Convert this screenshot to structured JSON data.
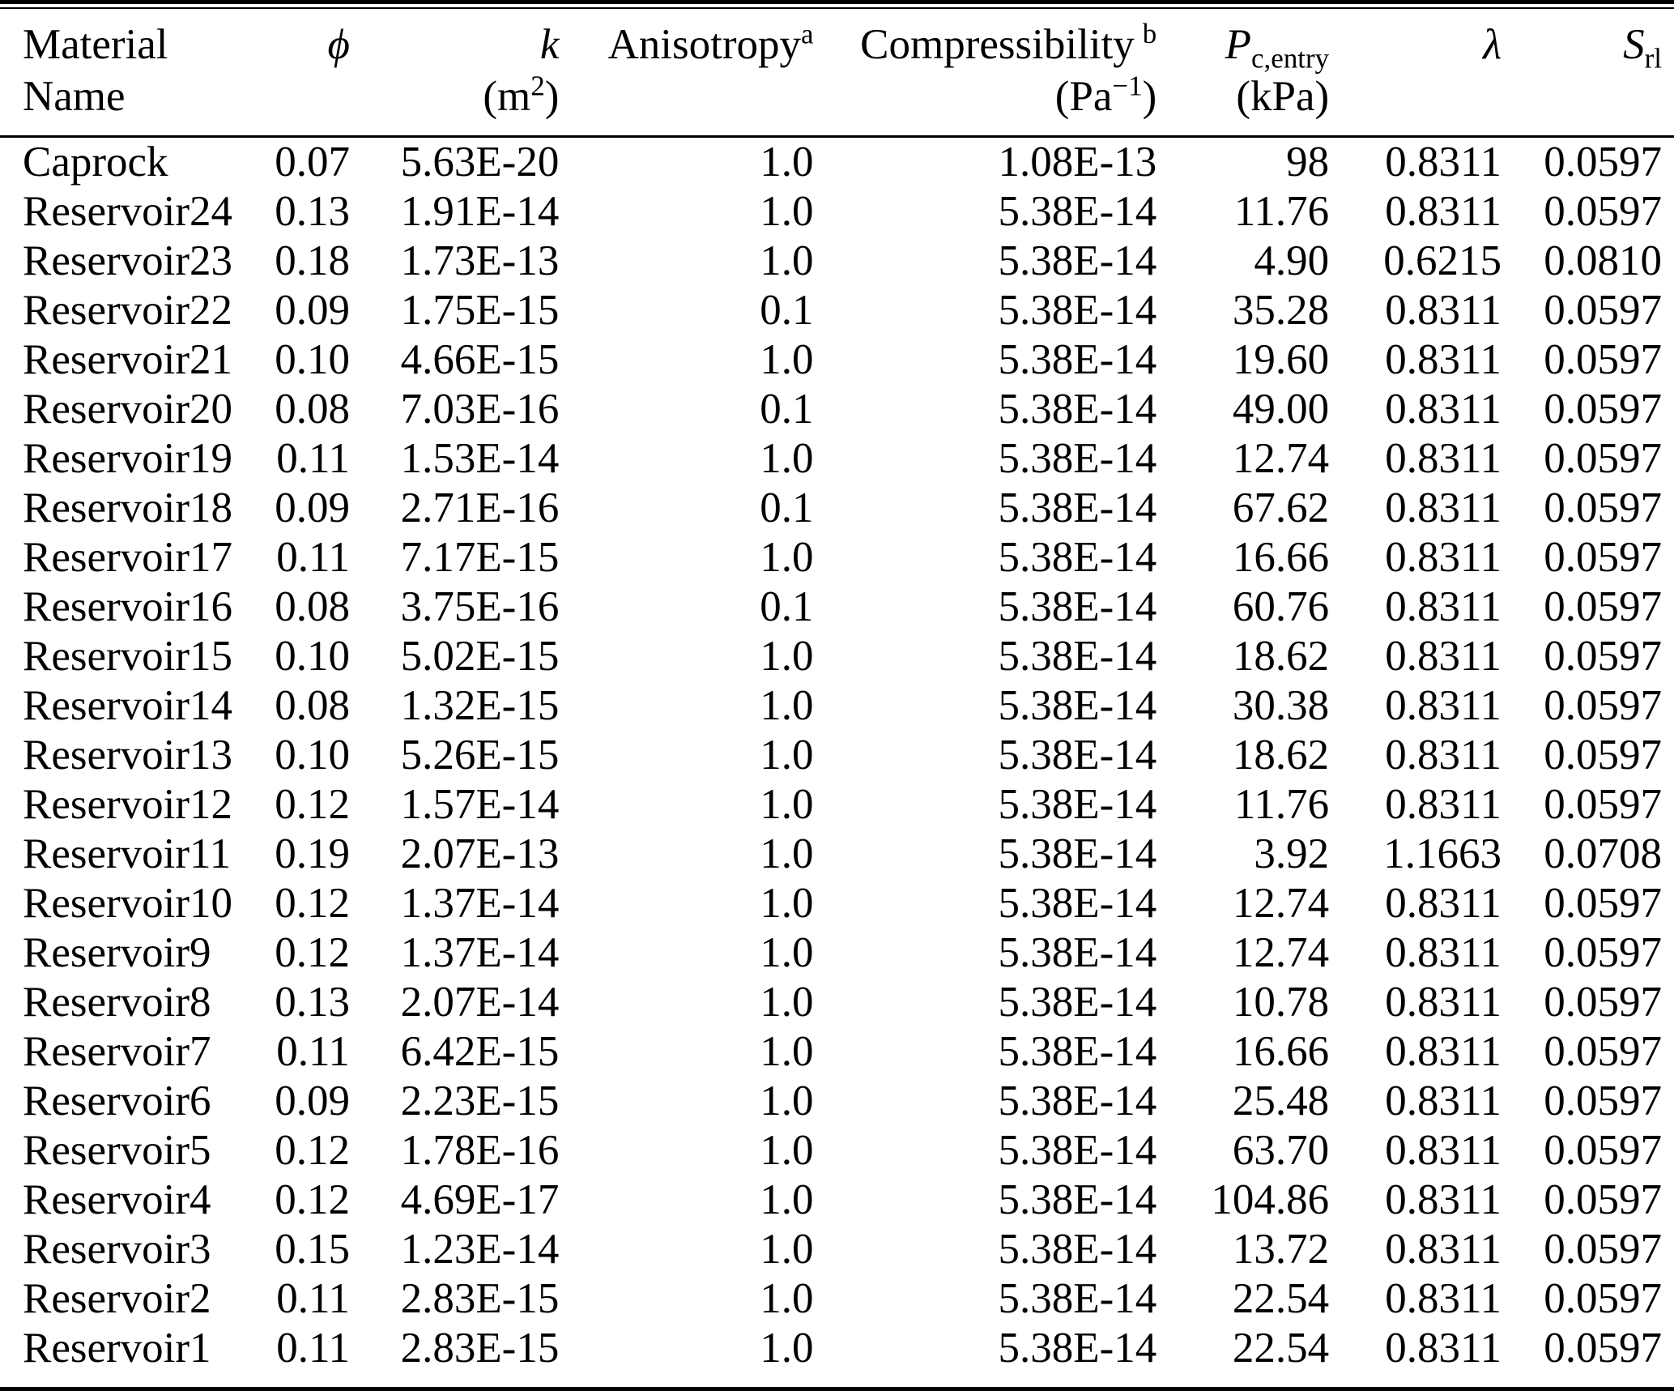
{
  "colors": {
    "text": "#000000",
    "background": "#ffffff",
    "rule": "#000000"
  },
  "table": {
    "column_keys": [
      "material_name",
      "phi",
      "k",
      "anisotropy",
      "compressibility",
      "pc_entry",
      "lambda",
      "srl"
    ],
    "header": {
      "material": {
        "line1": "Material",
        "line2": "Name"
      },
      "phi": {
        "symbol": "ϕ"
      },
      "k": {
        "symbol": "k",
        "unit_open": "(m",
        "unit_exp": "2",
        "unit_close": ")"
      },
      "anisotropy": {
        "label": "Anisotropy",
        "note": "a"
      },
      "compressibility": {
        "label": "Compressibility",
        "note": "b",
        "unit_open": "(Pa",
        "unit_exp": "−1",
        "unit_close": ")"
      },
      "pc_entry": {
        "symbol": "P",
        "sub": "c,entry",
        "unit": "(kPa)"
      },
      "lambda": {
        "symbol": "λ"
      },
      "srl": {
        "symbol": "S",
        "sub": "rl"
      }
    },
    "rows": [
      [
        "Caprock",
        "0.07",
        "5.63E-20",
        "1.0",
        "1.08E-13",
        "98",
        "0.8311",
        "0.0597"
      ],
      [
        "Reservoir24",
        "0.13",
        "1.91E-14",
        "1.0",
        "5.38E-14",
        "11.76",
        "0.8311",
        "0.0597"
      ],
      [
        "Reservoir23",
        "0.18",
        "1.73E-13",
        "1.0",
        "5.38E-14",
        "4.90",
        "0.6215",
        "0.0810"
      ],
      [
        "Reservoir22",
        "0.09",
        "1.75E-15",
        "0.1",
        "5.38E-14",
        "35.28",
        "0.8311",
        "0.0597"
      ],
      [
        "Reservoir21",
        "0.10",
        "4.66E-15",
        "1.0",
        "5.38E-14",
        "19.60",
        "0.8311",
        "0.0597"
      ],
      [
        "Reservoir20",
        "0.08",
        "7.03E-16",
        "0.1",
        "5.38E-14",
        "49.00",
        "0.8311",
        "0.0597"
      ],
      [
        "Reservoir19",
        "0.11",
        "1.53E-14",
        "1.0",
        "5.38E-14",
        "12.74",
        "0.8311",
        "0.0597"
      ],
      [
        "Reservoir18",
        "0.09",
        "2.71E-16",
        "0.1",
        "5.38E-14",
        "67.62",
        "0.8311",
        "0.0597"
      ],
      [
        "Reservoir17",
        "0.11",
        "7.17E-15",
        "1.0",
        "5.38E-14",
        "16.66",
        "0.8311",
        "0.0597"
      ],
      [
        "Reservoir16",
        "0.08",
        "3.75E-16",
        "0.1",
        "5.38E-14",
        "60.76",
        "0.8311",
        "0.0597"
      ],
      [
        "Reservoir15",
        "0.10",
        "5.02E-15",
        "1.0",
        "5.38E-14",
        "18.62",
        "0.8311",
        "0.0597"
      ],
      [
        "Reservoir14",
        "0.08",
        "1.32E-15",
        "1.0",
        "5.38E-14",
        "30.38",
        "0.8311",
        "0.0597"
      ],
      [
        "Reservoir13",
        "0.10",
        "5.26E-15",
        "1.0",
        "5.38E-14",
        "18.62",
        "0.8311",
        "0.0597"
      ],
      [
        "Reservoir12",
        "0.12",
        "1.57E-14",
        "1.0",
        "5.38E-14",
        "11.76",
        "0.8311",
        "0.0597"
      ],
      [
        "Reservoir11",
        "0.19",
        "2.07E-13",
        "1.0",
        "5.38E-14",
        "3.92",
        "1.1663",
        "0.0708"
      ],
      [
        "Reservoir10",
        "0.12",
        "1.37E-14",
        "1.0",
        "5.38E-14",
        "12.74",
        "0.8311",
        "0.0597"
      ],
      [
        "Reservoir9",
        "0.12",
        "1.37E-14",
        "1.0",
        "5.38E-14",
        "12.74",
        "0.8311",
        "0.0597"
      ],
      [
        "Reservoir8",
        "0.13",
        "2.07E-14",
        "1.0",
        "5.38E-14",
        "10.78",
        "0.8311",
        "0.0597"
      ],
      [
        "Reservoir7",
        "0.11",
        "6.42E-15",
        "1.0",
        "5.38E-14",
        "16.66",
        "0.8311",
        "0.0597"
      ],
      [
        "Reservoir6",
        "0.09",
        "2.23E-15",
        "1.0",
        "5.38E-14",
        "25.48",
        "0.8311",
        "0.0597"
      ],
      [
        "Reservoir5",
        "0.12",
        "1.78E-16",
        "1.0",
        "5.38E-14",
        "63.70",
        "0.8311",
        "0.0597"
      ],
      [
        "Reservoir4",
        "0.12",
        "4.69E-17",
        "1.0",
        "5.38E-14",
        "104.86",
        "0.8311",
        "0.0597"
      ],
      [
        "Reservoir3",
        "0.15",
        "1.23E-14",
        "1.0",
        "5.38E-14",
        "13.72",
        "0.8311",
        "0.0597"
      ],
      [
        "Reservoir2",
        "0.11",
        "2.83E-15",
        "1.0",
        "5.38E-14",
        "22.54",
        "0.8311",
        "0.0597"
      ],
      [
        "Reservoir1",
        "0.11",
        "2.83E-15",
        "1.0",
        "5.38E-14",
        "22.54",
        "0.8311",
        "0.0597"
      ]
    ]
  }
}
